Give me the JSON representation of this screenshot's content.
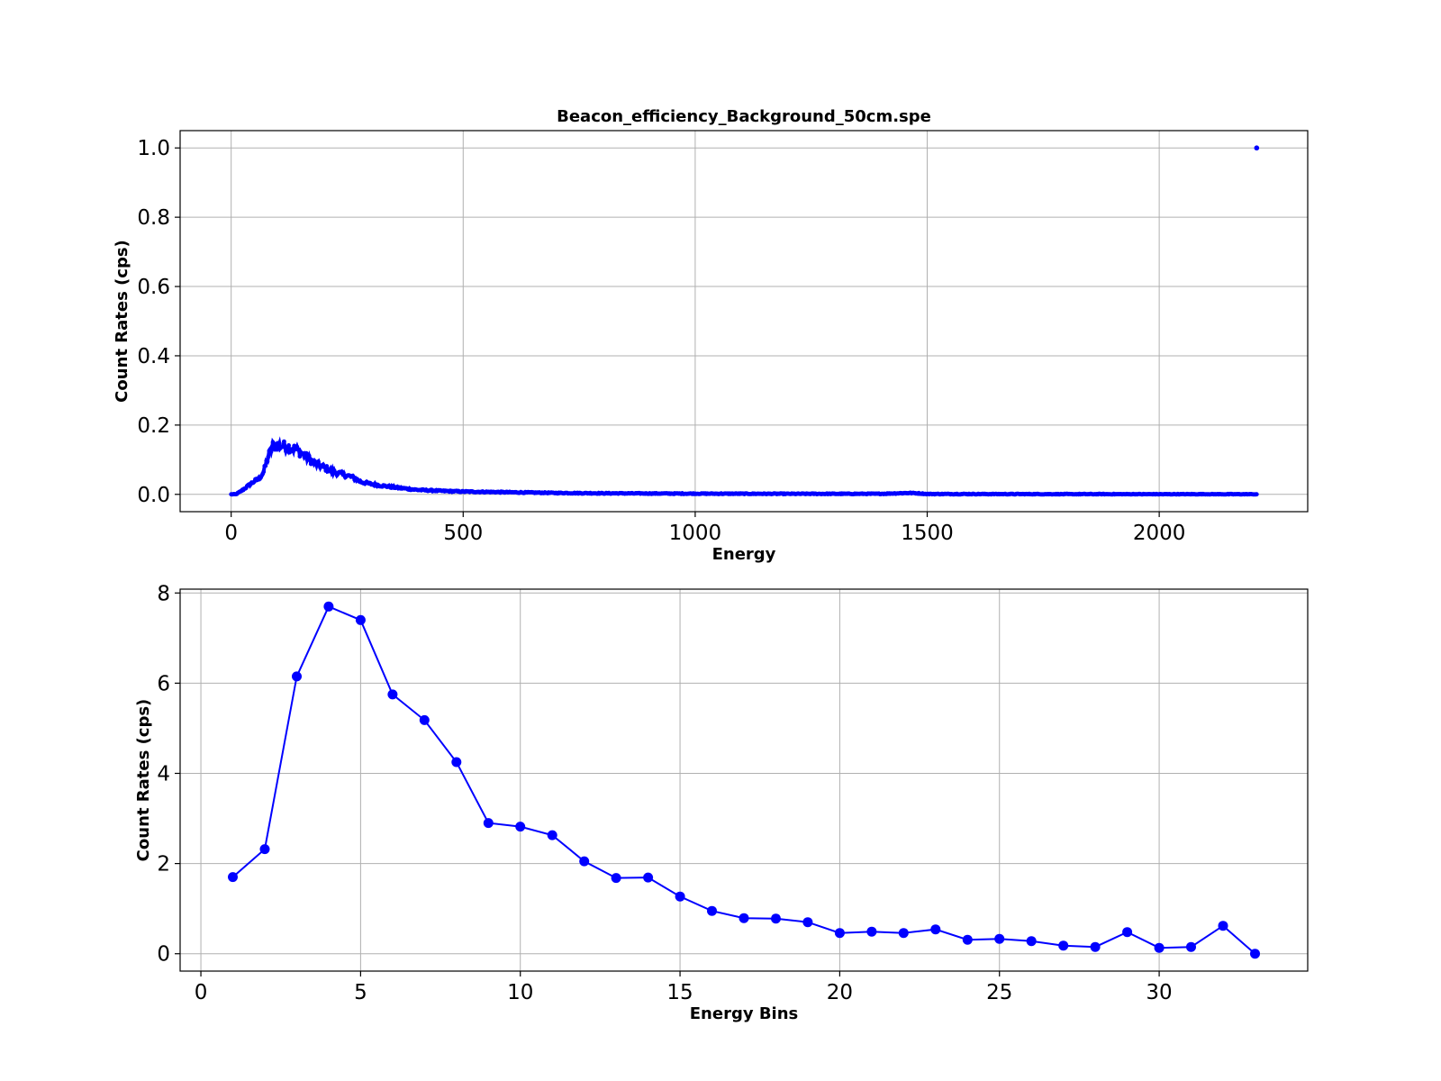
{
  "colors": {
    "series": "#0000ff",
    "grid": "#b0b0b0",
    "frame": "#000000"
  },
  "chart_data": [
    {
      "type": "scatter",
      "title": "Beacon_efficiency_Background_50cm.spe",
      "xlabel": "Energy",
      "ylabel": "Count Rates (cps)",
      "xlim": [
        -110,
        2320
      ],
      "ylim": [
        -0.05,
        1.05
      ],
      "xticks": [
        0,
        500,
        1000,
        1500,
        2000
      ],
      "xtick_labels": [
        "0",
        "500",
        "1000",
        "1500",
        "2000"
      ],
      "yticks": [
        0.0,
        0.2,
        0.4,
        0.6,
        0.8,
        1.0
      ],
      "ytick_labels": [
        "0.0",
        "0.2",
        "0.4",
        "0.6",
        "0.8",
        "1.0"
      ],
      "grid": true,
      "series": [
        {
          "color": "#0000ff",
          "x_range": [
            0,
            2210
          ],
          "profile": [
            [
              0,
              0.0
            ],
            [
              10,
              0.0
            ],
            [
              20,
              0.008
            ],
            [
              30,
              0.018
            ],
            [
              40,
              0.028
            ],
            [
              50,
              0.038
            ],
            [
              60,
              0.045
            ],
            [
              70,
              0.065
            ],
            [
              80,
              0.11
            ],
            [
              90,
              0.14
            ],
            [
              100,
              0.142
            ],
            [
              120,
              0.138
            ],
            [
              140,
              0.13
            ],
            [
              160,
              0.11
            ],
            [
              180,
              0.09
            ],
            [
              200,
              0.078
            ],
            [
              220,
              0.065
            ],
            [
              240,
              0.058
            ],
            [
              260,
              0.05
            ],
            [
              280,
              0.036
            ],
            [
              300,
              0.03
            ],
            [
              330,
              0.024
            ],
            [
              360,
              0.019
            ],
            [
              400,
              0.013
            ],
            [
              450,
              0.01
            ],
            [
              500,
              0.008
            ],
            [
              600,
              0.006
            ],
            [
              700,
              0.004
            ],
            [
              800,
              0.003
            ],
            [
              1000,
              0.002
            ],
            [
              1200,
              0.0015
            ],
            [
              1400,
              0.0015
            ],
            [
              1460,
              0.004
            ],
            [
              1480,
              0.003
            ],
            [
              1500,
              0.001
            ],
            [
              1800,
              0.0005
            ],
            [
              2200,
              0.0003
            ],
            [
              2210,
              0.0
            ]
          ],
          "outlier": {
            "x": 2210,
            "y": 1.0
          }
        }
      ]
    },
    {
      "type": "line",
      "title": "",
      "xlabel": "Energy Bins",
      "ylabel": "Count Rates (cps)",
      "xlim": [
        -0.65,
        34.65
      ],
      "ylim": [
        -0.385,
        8.085
      ],
      "xticks": [
        0,
        5,
        10,
        15,
        20,
        25,
        30
      ],
      "xtick_labels": [
        "0",
        "5",
        "10",
        "15",
        "20",
        "25",
        "30"
      ],
      "yticks": [
        0,
        2,
        4,
        6,
        8
      ],
      "ytick_labels": [
        "0",
        "2",
        "4",
        "6",
        "8"
      ],
      "grid": true,
      "series": [
        {
          "color": "#0000ff",
          "x": [
            1,
            2,
            3,
            4,
            5,
            6,
            7,
            8,
            9,
            10,
            11,
            12,
            13,
            14,
            15,
            16,
            17,
            18,
            19,
            20,
            21,
            22,
            23,
            24,
            25,
            26,
            27,
            28,
            29,
            30,
            31,
            32,
            33
          ],
          "y": [
            1.7,
            2.32,
            6.15,
            7.7,
            7.4,
            5.75,
            5.18,
            4.25,
            2.9,
            2.82,
            2.63,
            2.05,
            1.68,
            1.69,
            1.27,
            0.95,
            0.79,
            0.78,
            0.7,
            0.46,
            0.49,
            0.46,
            0.54,
            0.31,
            0.33,
            0.28,
            0.18,
            0.15,
            0.48,
            0.13,
            0.15,
            0.62,
            0.0
          ]
        }
      ]
    }
  ]
}
